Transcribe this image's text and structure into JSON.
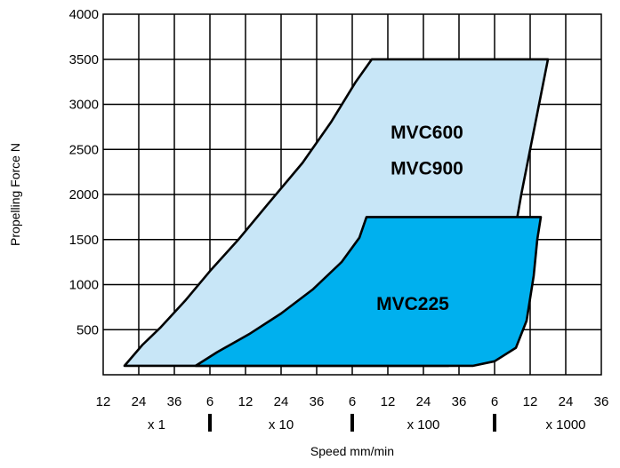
{
  "chart_data": {
    "type": "area",
    "xlabel": "Speed mm/min",
    "ylabel": "Propelling Force N",
    "ylim": [
      0,
      4000
    ],
    "y_ticks": [
      500,
      1000,
      1500,
      2000,
      2500,
      3000,
      3500,
      4000
    ],
    "x_tick_labels": [
      "12",
      "24",
      "36",
      "6",
      "12",
      "24",
      "36",
      "6",
      "12",
      "24",
      "36",
      "6",
      "12",
      "24",
      "36"
    ],
    "x_ranges": [
      {
        "label": "x 1",
        "position": 1.5
      },
      {
        "label": "x 10",
        "position": 5
      },
      {
        "label": "x 100",
        "position": 9
      },
      {
        "label": "x 1000",
        "position": 13
      }
    ],
    "x_range_separators": [
      3,
      7,
      11
    ],
    "x_scale_note": "x positions are measured in tick intervals from the first tick label (12 at position 0, 36 at position 14)",
    "grid": true,
    "regions": [
      {
        "name": "MVC600 / MVC900",
        "labels": [
          "MVC600",
          "MVC900"
        ],
        "color": "#c8e6f7",
        "boundary": [
          [
            0.6,
            100
          ],
          [
            1.1,
            330
          ],
          [
            1.6,
            520
          ],
          [
            2.3,
            820
          ],
          [
            3.0,
            1150
          ],
          [
            3.8,
            1500
          ],
          [
            4.6,
            1880
          ],
          [
            5.6,
            2350
          ],
          [
            6.4,
            2800
          ],
          [
            7.1,
            3250
          ],
          [
            7.55,
            3500
          ],
          [
            12.5,
            3500
          ],
          [
            12.3,
            3100
          ],
          [
            12.1,
            2700
          ],
          [
            11.9,
            2300
          ],
          [
            11.75,
            2000
          ],
          [
            11.55,
            1550
          ],
          [
            11.3,
            1100
          ],
          [
            10.9,
            650
          ],
          [
            10.5,
            330
          ],
          [
            9.7,
            100
          ]
        ],
        "label_positions": [
          [
            9.1,
            2700
          ],
          [
            9.1,
            2300
          ]
        ]
      },
      {
        "name": "MVC225",
        "labels": [
          "MVC225"
        ],
        "color": "#00b0ee",
        "boundary": [
          [
            2.6,
            100
          ],
          [
            3.2,
            250
          ],
          [
            4.1,
            450
          ],
          [
            5.0,
            680
          ],
          [
            5.9,
            950
          ],
          [
            6.7,
            1250
          ],
          [
            7.2,
            1520
          ],
          [
            7.4,
            1750
          ],
          [
            12.3,
            1750
          ],
          [
            12.2,
            1500
          ],
          [
            12.1,
            1100
          ],
          [
            11.9,
            600
          ],
          [
            11.6,
            300
          ],
          [
            11.0,
            150
          ],
          [
            10.4,
            100
          ]
        ],
        "label_positions": [
          [
            8.7,
            800
          ]
        ]
      }
    ]
  }
}
